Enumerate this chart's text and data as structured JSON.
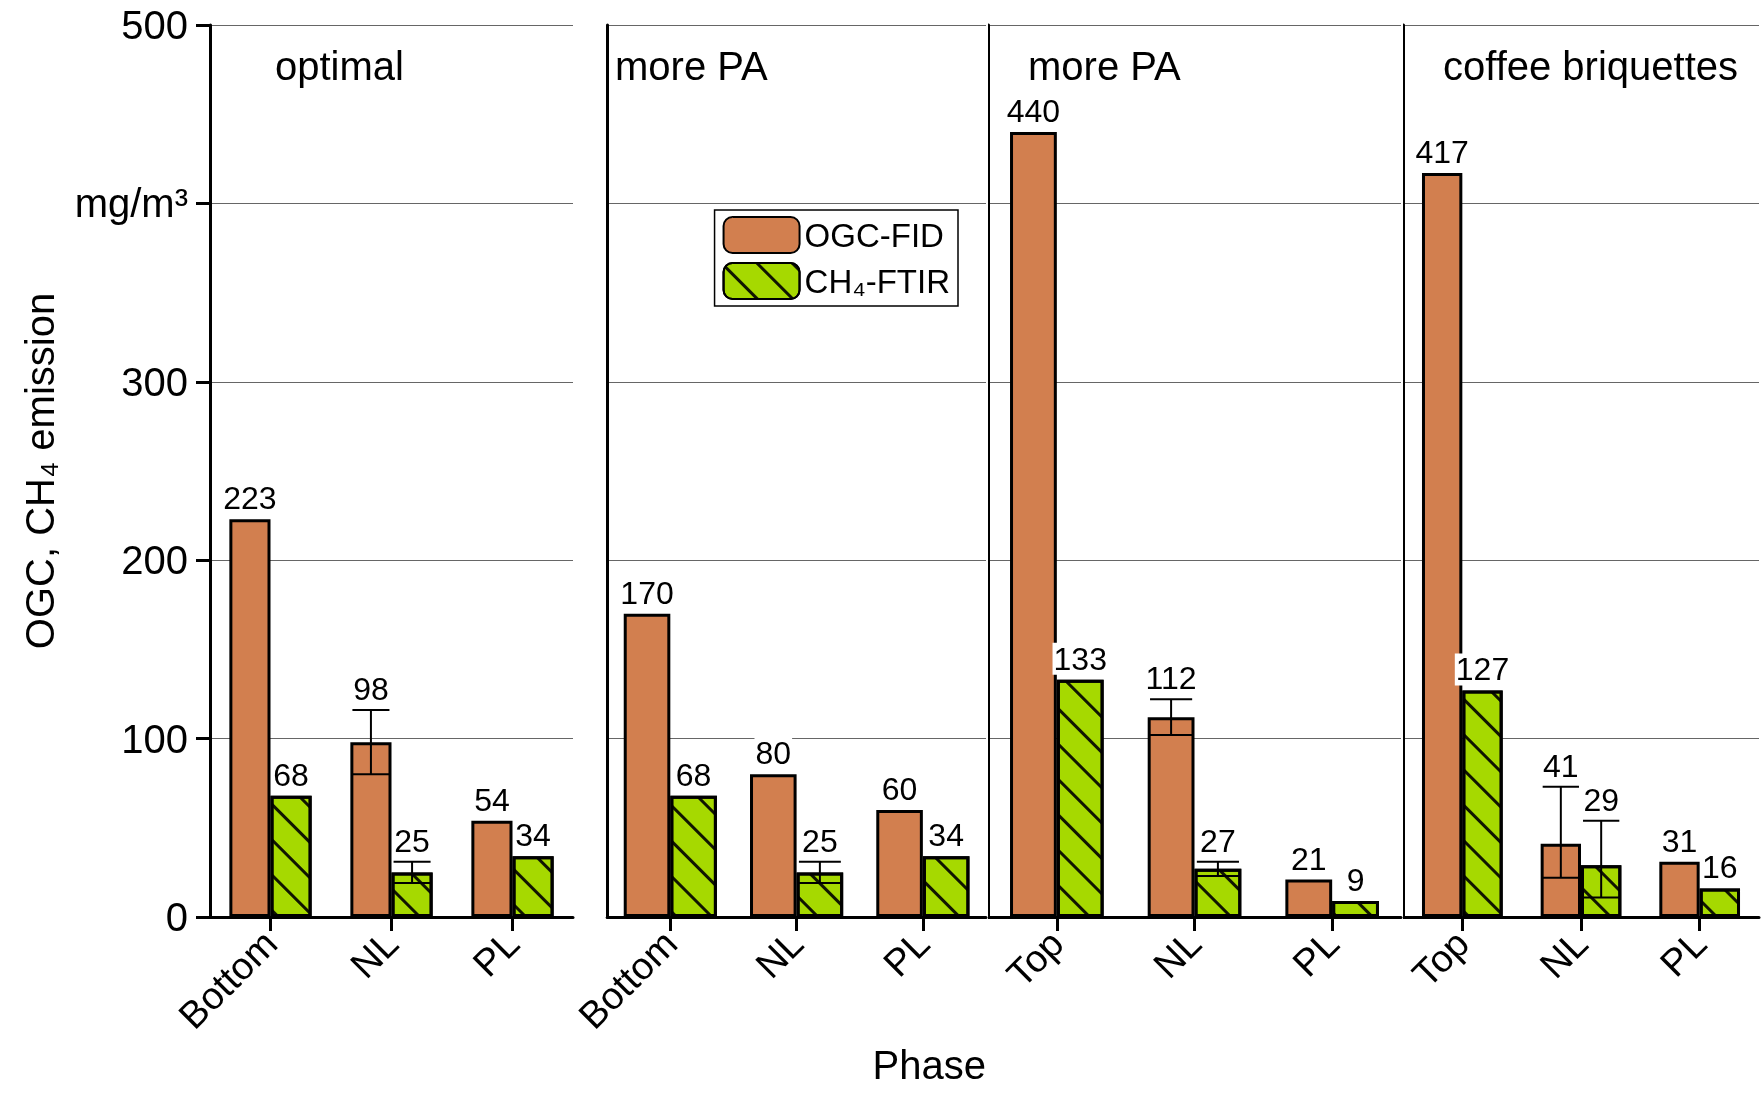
{
  "chart_data": [
    {
      "type": "bar",
      "title": "optimal",
      "ylabel": "OGC, CH₄ emission",
      "categories": [
        "Bottom",
        "NL",
        "PL"
      ],
      "ylim": [
        0,
        500
      ],
      "yticks": [
        0,
        100,
        200,
        300,
        {
          "value": 400,
          "label": "mg/m³"
        },
        500
      ],
      "grid": "y",
      "data_labels": true,
      "legend": false,
      "series": [
        {
          "color": "#d27f4f",
          "values": [
            223,
            98,
            54
          ],
          "errors": [
            null,
            18,
            null
          ]
        },
        {
          "color": "#a6d900",
          "values": [
            68,
            25,
            34
          ],
          "errors": [
            null,
            6,
            null
          ]
        }
      ]
    },
    {
      "type": "bar",
      "title": "more PA",
      "xlabel": "Phase",
      "categories": [
        "Bottom",
        "NL",
        "PL"
      ],
      "ylim": [
        0,
        500
      ],
      "yticks": [
        0,
        100,
        200,
        300,
        400,
        500
      ],
      "tick_labels": "x",
      "grid": "y",
      "data_labels": true,
      "legend": "top right",
      "series": [
        {
          "name": "OGC-FID",
          "color": "#d27f4f",
          "values": [
            170,
            80,
            60
          ]
        },
        {
          "name": "CH₄-FTIR",
          "color": "#a6d900",
          "values": [
            68,
            25,
            34
          ],
          "errors": [
            null,
            6,
            null
          ]
        }
      ]
    },
    {
      "type": "bar",
      "title": "more PA",
      "categories": [
        "Top",
        "NL",
        "PL"
      ],
      "ylim": [
        0,
        500
      ],
      "yticks": [
        0,
        100,
        200,
        300,
        400,
        500
      ],
      "tick_labels": "x",
      "grid": "y",
      "data_labels": true,
      "legend": false,
      "series": [
        {
          "color": "#d27f4f",
          "values": [
            440,
            112,
            21
          ],
          "errors": [
            null,
            10,
            null
          ]
        },
        {
          "color": "#a6d900",
          "values": [
            133,
            27,
            9
          ],
          "errors": [
            null,
            4,
            null
          ]
        }
      ]
    },
    {
      "type": "bar",
      "title": "coffee briquettes",
      "categories": [
        "Top",
        "NL",
        "PL"
      ],
      "ylim": [
        0,
        500
      ],
      "yticks": [
        0,
        100,
        200,
        300,
        400,
        500
      ],
      "tick_labels": "x",
      "grid": "y",
      "data_labels": true,
      "legend": false,
      "series": [
        {
          "color": "#d27f4f",
          "values": [
            417,
            41,
            31
          ],
          "errors": [
            null,
            [
              22,
              73
            ],
            null
          ]
        },
        {
          "color": "#a6d900",
          "values": [
            127,
            29,
            16
          ],
          "errors": [
            null,
            [
              11,
              54
            ],
            null
          ]
        }
      ]
    }
  ]
}
